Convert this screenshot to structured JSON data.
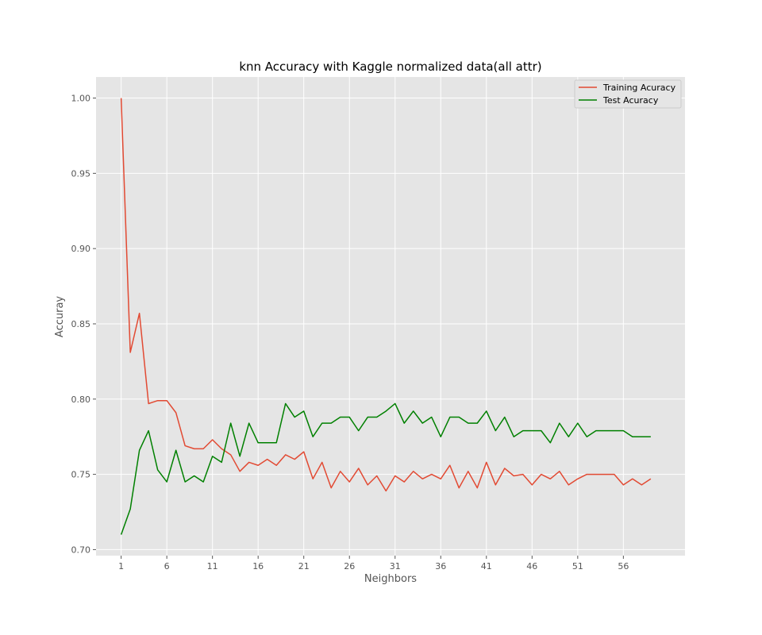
{
  "chart_data": {
    "type": "line",
    "title": "knn Accuracy with Kaggle normalized data(all attr)",
    "xlabel": "Neighbors",
    "ylabel": "Accuray",
    "xlim": [
      -1.75,
      62.75
    ],
    "ylim": [
      0.696,
      1.014
    ],
    "x_ticks": [
      "1",
      "6",
      "11",
      "16",
      "21",
      "26",
      "31",
      "36",
      "41",
      "46",
      "51",
      "56"
    ],
    "y_ticks": [
      "0.70",
      "0.75",
      "0.80",
      "0.85",
      "0.90",
      "0.95",
      "1.00"
    ],
    "grid": true,
    "legend_position": "top-right",
    "x": [
      1,
      2,
      3,
      4,
      5,
      6,
      7,
      8,
      9,
      10,
      11,
      12,
      13,
      14,
      15,
      16,
      17,
      18,
      19,
      20,
      21,
      22,
      23,
      24,
      25,
      26,
      27,
      28,
      29,
      30,
      31,
      32,
      33,
      34,
      35,
      36,
      37,
      38,
      39,
      40,
      41,
      42,
      43,
      44,
      45,
      46,
      47,
      48,
      49,
      50,
      51,
      52,
      53,
      54,
      55,
      56,
      57,
      58,
      59
    ],
    "series": [
      {
        "name": "Training Acuracy",
        "color": "#E24A33",
        "values": [
          1.0,
          0.831,
          0.857,
          0.797,
          0.799,
          0.799,
          0.791,
          0.769,
          0.767,
          0.767,
          0.773,
          0.767,
          0.763,
          0.752,
          0.758,
          0.756,
          0.76,
          0.756,
          0.763,
          0.76,
          0.765,
          0.747,
          0.758,
          0.741,
          0.752,
          0.745,
          0.754,
          0.743,
          0.749,
          0.739,
          0.749,
          0.745,
          0.752,
          0.747,
          0.75,
          0.747,
          0.756,
          0.741,
          0.752,
          0.741,
          0.758,
          0.743,
          0.754,
          0.749,
          0.75,
          0.743,
          0.75,
          0.747,
          0.752,
          0.743,
          0.747,
          0.75,
          0.75,
          0.75,
          0.75,
          0.743,
          0.747,
          0.743,
          0.747
        ]
      },
      {
        "name": "Test Acuracy",
        "color": "#008000",
        "values": [
          0.71,
          0.727,
          0.766,
          0.779,
          0.753,
          0.745,
          0.766,
          0.745,
          0.749,
          0.745,
          0.762,
          0.758,
          0.784,
          0.762,
          0.784,
          0.771,
          0.771,
          0.771,
          0.797,
          0.788,
          0.792,
          0.775,
          0.784,
          0.784,
          0.788,
          0.788,
          0.779,
          0.788,
          0.788,
          0.792,
          0.797,
          0.784,
          0.792,
          0.784,
          0.788,
          0.775,
          0.788,
          0.788,
          0.784,
          0.784,
          0.792,
          0.779,
          0.788,
          0.775,
          0.779,
          0.779,
          0.779,
          0.771,
          0.784,
          0.775,
          0.784,
          0.775,
          0.779,
          0.779,
          0.779,
          0.779,
          0.775,
          0.775,
          0.775
        ]
      }
    ]
  }
}
